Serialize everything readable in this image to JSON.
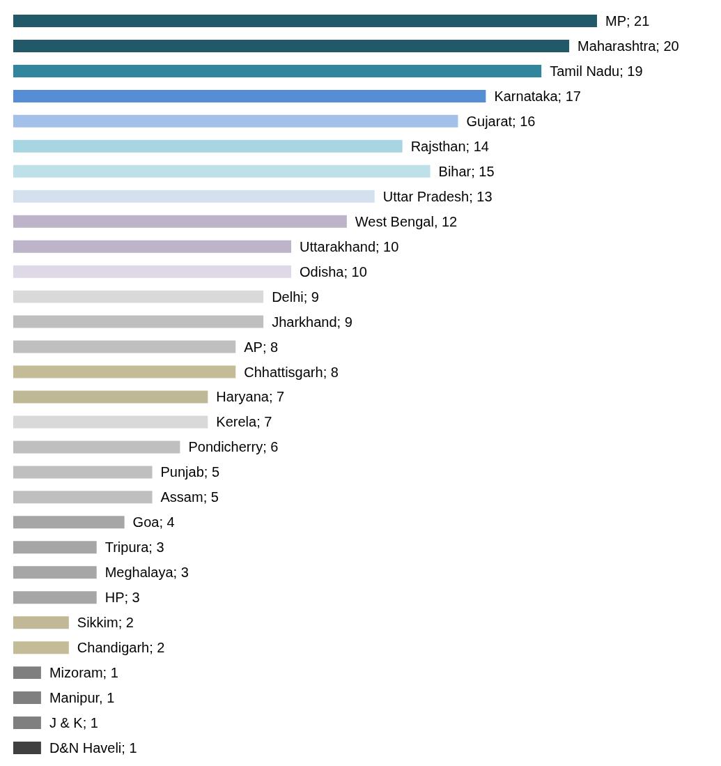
{
  "chart_data": {
    "type": "bar",
    "orientation": "horizontal",
    "categories": [
      null,
      null,
      null,
      null,
      null,
      null,
      null,
      null,
      null,
      null,
      null,
      null,
      null,
      null,
      null,
      null,
      null,
      null,
      null,
      null,
      null,
      null,
      null,
      null,
      null,
      null,
      null,
      null,
      null,
      null
    ],
    "values": [
      21,
      20,
      19,
      17,
      16,
      14,
      15,
      13,
      12,
      10,
      10,
      9,
      9,
      8,
      8,
      7,
      7,
      6,
      5,
      5,
      4,
      3,
      3,
      3,
      2,
      2,
      1,
      1,
      1,
      1
    ],
    "value_labels": [
      "MP; 21",
      "Maharashtra; 20",
      "Tamil Nadu; 19",
      "Karnataka; 17",
      "Gujarat; 16",
      "Rajsthan; 14",
      "Bihar; 15",
      "Uttar Pradesh; 13",
      "West Bengal, 12",
      "Uttarakhand; 10",
      "Odisha; 10",
      "Delhi; 9",
      "Jharkhand; 9",
      "AP; 8",
      "Chhattisgarh; 8",
      "Haryana; 7",
      "Kerela; 7",
      "Pondicherry; 6",
      "Punjab; 5",
      "Assam; 5",
      "Goa; 4",
      "Tripura; 3",
      "Meghalaya; 3",
      "HP; 3",
      "Sikkim; 2",
      "Chandigarh; 2",
      "Mizoram; 1",
      "Manipur, 1",
      "J & K; 1",
      "D&N Haveli; 1"
    ],
    "colors": [
      "#215968",
      "#215968",
      "#31859c",
      "#558ed5",
      "#a3c1e8",
      "#a8d5e2",
      "#bde0e9",
      "#d5e0ef",
      "#bdb4ca",
      "#bdb4ca",
      "#dfd9e7",
      "#d9d9d9",
      "#bfbfbf",
      "#bfbfbf",
      "#c4bc97",
      "#bfb897",
      "#d9d9d9",
      "#bfbfbf",
      "#bfbfbf",
      "#bfbfbf",
      "#a6a6a6",
      "#a6a6a6",
      "#a6a6a6",
      "#a6a6a6",
      "#c0b897",
      "#c4bc97",
      "#7f7f7f",
      "#7f7f7f",
      "#7f7f7f",
      "#404040"
    ],
    "grid": false
  }
}
